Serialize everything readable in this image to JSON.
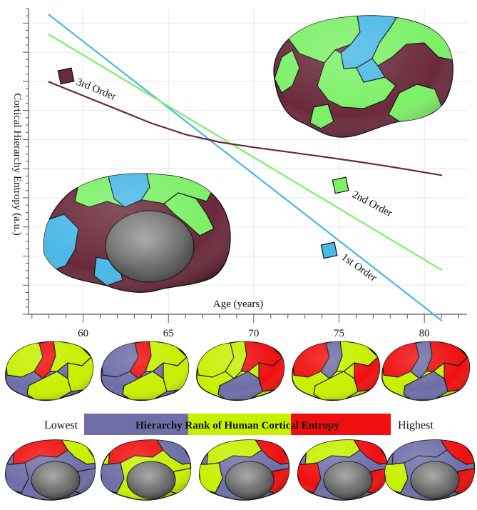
{
  "chart_data": {
    "type": "line",
    "title": "",
    "xlabel": "Age (years)",
    "ylabel": "Cortical Hierarchy Entropy (a.u.)",
    "xlim": [
      56.8,
      82.5
    ],
    "ylim": [
      0,
      100
    ],
    "x_ticks": [
      60,
      65,
      70,
      75,
      80
    ],
    "grid": true,
    "series": [
      {
        "name": "1st Order",
        "color": "#4ab8e6",
        "x": [
          58.0,
          81.0
        ],
        "y": [
          98.0,
          -2.0
        ]
      },
      {
        "name": "2nd Order",
        "color": "#7cf067",
        "x": [
          58.0,
          81.0
        ],
        "y": [
          91.5,
          14.5
        ]
      },
      {
        "name": "3rd Order",
        "color": "#6b2a3b",
        "x": [
          58.0,
          60.0,
          62.0,
          64.0,
          66.0,
          68.0,
          70.0,
          72.0,
          74.0,
          76.0,
          78.0,
          81.0
        ],
        "y": [
          76.0,
          71.5,
          67.0,
          62.5,
          58.8,
          56.3,
          54.6,
          53.1,
          51.6,
          50.0,
          48.3,
          45.5
        ]
      }
    ],
    "series_label_text": {
      "first": "1st Order",
      "second": "2nd Order",
      "third": "3rd Order"
    }
  },
  "legend": {
    "title": "Hierarchy Rank of Human Cortical Entropy",
    "low_label": "Lowest",
    "high_label": "Highest",
    "colors": [
      "#6e6ea8",
      "#c6f000",
      "#f00f0f"
    ]
  },
  "brain_colors": {
    "first_order": "#4ab8e6",
    "second_order": "#7cf067",
    "third_order": "#6b2a3b",
    "medial_wall": "#6a6a6a",
    "low_rank": "#6e6ea8",
    "mid_rank": "#c6f000",
    "high_rank": "#f00f0f"
  }
}
